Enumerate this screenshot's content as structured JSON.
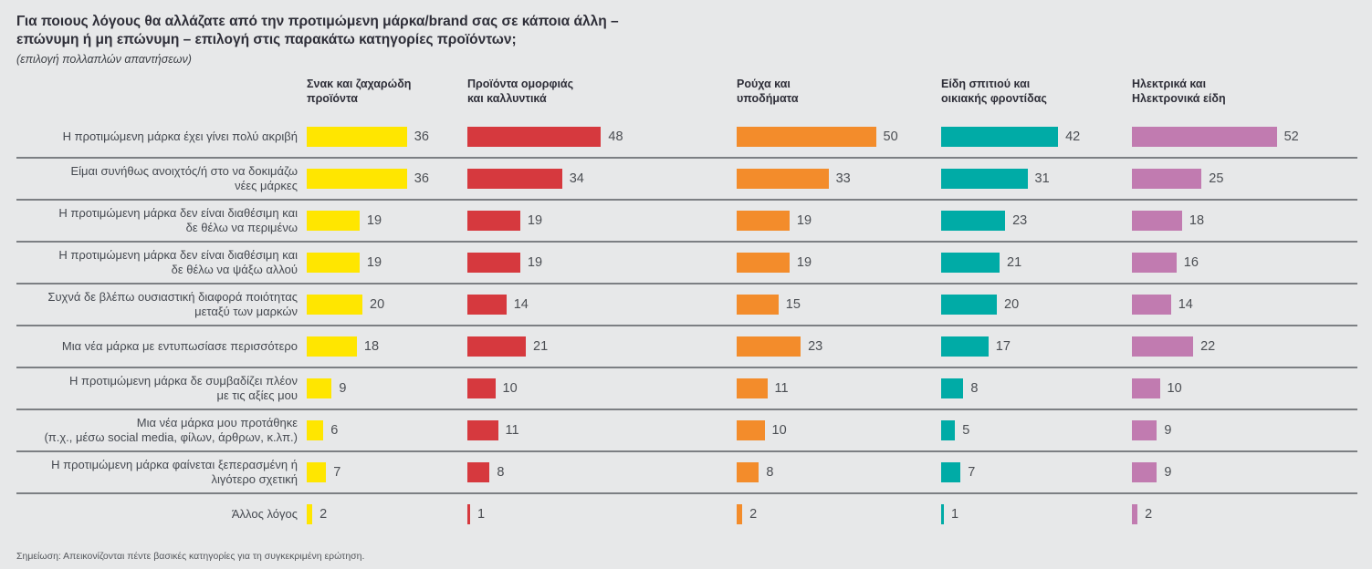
{
  "header": {
    "title": "Για ποιους λόγους θα αλλάζατε από την προτιμώμενη μάρκα/brand σας σε κάποια άλλη –\nεπώνυμη ή μη επώνυμη – επιλογή στις παρακάτω κατηγορίες προϊόντων;",
    "subtitle": "(επιλογή πολλαπλών απαντήσεων)"
  },
  "note": "Σημείωση: Απεικονίζονται πέντε βασικές κατηγορίες για τη συγκεκριμένη ερώτηση.",
  "chart_data": {
    "type": "bar",
    "orientation": "horizontal",
    "title": "Για ποιους λόγους θα αλλάζατε από την προτιμώμενη μάρκα/brand σας σε κάποια άλλη – επώνυμη ή μη επώνυμη – επιλογή στις παρακάτω κατηγορίες προϊόντων;",
    "subtitle": "(επιλογή πολλαπλών απαντήσεων)",
    "unit": "percent",
    "value_range": [
      0,
      52
    ],
    "grid": false,
    "data_labels": true,
    "legend_position": "column-headers",
    "categories": [
      "Η προτιμώμενη μάρκα έχει γίνει πολύ ακριβή",
      "Είμαι συνήθως ανοιχτός/ή στο να δοκιμάζω\nνέες μάρκες",
      "Η προτιμώμενη μάρκα δεν είναι διαθέσιμη και\nδε θέλω να περιμένω",
      "Η προτιμώμενη μάρκα δεν είναι διαθέσιμη και\nδε θέλω να ψάξω αλλού",
      "Συχνά δε βλέπω ουσιαστική διαφορά ποιότητας\nμεταξύ των μαρκών",
      "Μια νέα μάρκα με εντυπωσίασε περισσότερο",
      "Η προτιμώμενη μάρκα δε συμβαδίζει πλέον\nμε τις αξίες μου",
      "Μια νέα μάρκα μου προτάθηκε\n(π.χ., μέσω social media, φίλων, άρθρων, κ.λπ.)",
      "Η προτιμώμενη μάρκα φαίνεται ξεπερασμένη ή\nλιγότερο σχετική",
      "Άλλος λόγος"
    ],
    "series": [
      {
        "name": "Σνακ και ζαχαρώδη\nπροϊόντα",
        "color": "#FFE600",
        "values": [
          36,
          36,
          19,
          19,
          20,
          18,
          9,
          6,
          7,
          2
        ]
      },
      {
        "name": "Προϊόντα ομορφιάς\nκαι καλλυντικά",
        "color": "#D6393E",
        "values": [
          48,
          34,
          19,
          19,
          14,
          21,
          10,
          11,
          8,
          1
        ]
      },
      {
        "name": "Ρούχα και\nυποδήματα",
        "color": "#F38C2B",
        "values": [
          50,
          33,
          19,
          19,
          15,
          23,
          11,
          10,
          8,
          2
        ]
      },
      {
        "name": "Είδη σπιτιού και\nοικιακής φροντίδας",
        "color": "#00ABA6",
        "values": [
          42,
          31,
          23,
          21,
          20,
          17,
          8,
          5,
          7,
          1
        ]
      },
      {
        "name": "Ηλεκτρικά και\nΗλεκτρονικά είδη",
        "color": "#C17BB0",
        "values": [
          52,
          25,
          18,
          16,
          14,
          22,
          10,
          9,
          9,
          2
        ]
      }
    ]
  }
}
